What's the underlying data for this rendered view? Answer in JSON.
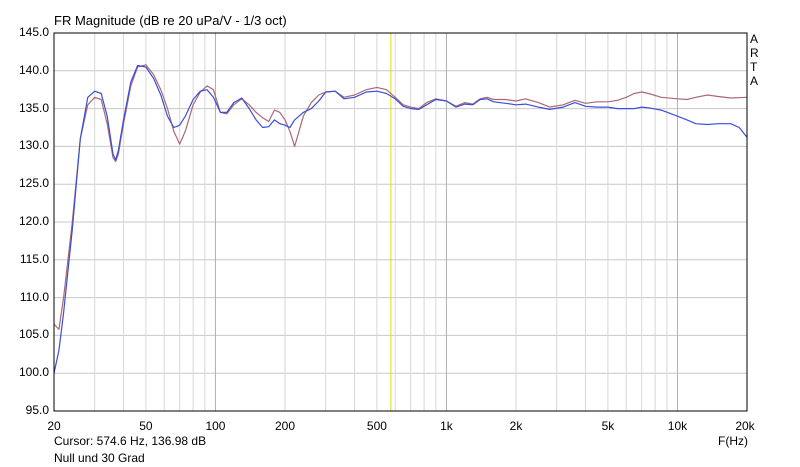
{
  "chart_data": {
    "type": "line",
    "title": "FR Magnitude (dB re 20 uPa/V - 1/3 oct)",
    "xlabel": "F(Hz)",
    "x_scale": "log",
    "xlim": [
      20,
      20000
    ],
    "ylim": [
      95,
      145
    ],
    "grid": true,
    "y_ticks": [
      "95.0",
      "100.0",
      "105.0",
      "110.0",
      "115.0",
      "120.0",
      "125.0",
      "130.0",
      "135.0",
      "140.0",
      "145.0"
    ],
    "x_ticks": [
      {
        "value": 20,
        "label": "20"
      },
      {
        "value": 50,
        "label": "50"
      },
      {
        "value": 100,
        "label": "100"
      },
      {
        "value": 200,
        "label": "200"
      },
      {
        "value": 500,
        "label": "500"
      },
      {
        "value": 1000,
        "label": "1k"
      },
      {
        "value": 2000,
        "label": "2k"
      },
      {
        "value": 5000,
        "label": "5k"
      },
      {
        "value": 10000,
        "label": "10k"
      },
      {
        "value": 20000,
        "label": "20k"
      }
    ],
    "cursor_x": 574.6,
    "series": [
      {
        "color": "#a86a72",
        "points": [
          [
            20,
            106.5
          ],
          [
            21,
            105.8
          ],
          [
            22,
            110
          ],
          [
            24,
            120
          ],
          [
            26,
            131
          ],
          [
            28,
            135.5
          ],
          [
            30,
            136.5
          ],
          [
            32,
            136.2
          ],
          [
            34,
            133
          ],
          [
            36,
            128.5
          ],
          [
            37,
            128
          ],
          [
            38,
            129
          ],
          [
            40,
            133
          ],
          [
            43,
            138
          ],
          [
            46,
            140.5
          ],
          [
            50,
            140.8
          ],
          [
            54,
            139.5
          ],
          [
            58,
            137.5
          ],
          [
            62,
            135
          ],
          [
            66,
            132
          ],
          [
            70,
            130.3
          ],
          [
            74,
            132
          ],
          [
            80,
            135.5
          ],
          [
            86,
            137.2
          ],
          [
            92,
            138
          ],
          [
            98,
            137.5
          ],
          [
            105,
            134.5
          ],
          [
            112,
            134.3
          ],
          [
            120,
            135.5
          ],
          [
            130,
            136.3
          ],
          [
            140,
            135.5
          ],
          [
            150,
            134.5
          ],
          [
            160,
            133.8
          ],
          [
            170,
            133.3
          ],
          [
            180,
            134.8
          ],
          [
            190,
            134.5
          ],
          [
            200,
            133.5
          ],
          [
            210,
            132
          ],
          [
            220,
            130
          ],
          [
            230,
            132
          ],
          [
            240,
            134
          ],
          [
            260,
            135.8
          ],
          [
            280,
            136.8
          ],
          [
            300,
            137.2
          ],
          [
            330,
            137.3
          ],
          [
            360,
            136.5
          ],
          [
            400,
            136.8
          ],
          [
            450,
            137.5
          ],
          [
            500,
            137.8
          ],
          [
            550,
            137.5
          ],
          [
            600,
            136.5
          ],
          [
            650,
            135.5
          ],
          [
            700,
            135.2
          ],
          [
            760,
            135
          ],
          [
            820,
            135.8
          ],
          [
            900,
            136.3
          ],
          [
            1000,
            136
          ],
          [
            1100,
            135.3
          ],
          [
            1200,
            135.8
          ],
          [
            1300,
            135.6
          ],
          [
            1400,
            136.3
          ],
          [
            1500,
            136.5
          ],
          [
            1600,
            136.2
          ],
          [
            1800,
            136.2
          ],
          [
            2000,
            136
          ],
          [
            2200,
            136.3
          ],
          [
            2500,
            135.8
          ],
          [
            2800,
            135.2
          ],
          [
            3200,
            135.5
          ],
          [
            3600,
            136.1
          ],
          [
            4000,
            135.7
          ],
          [
            4500,
            135.9
          ],
          [
            5000,
            135.9
          ],
          [
            5500,
            136.1
          ],
          [
            6000,
            136.5
          ],
          [
            6500,
            137
          ],
          [
            7000,
            137.2
          ],
          [
            7500,
            137
          ],
          [
            8500,
            136.5
          ],
          [
            10000,
            136.3
          ],
          [
            11000,
            136.2
          ],
          [
            12000,
            136.5
          ],
          [
            13500,
            136.8
          ],
          [
            15000,
            136.6
          ],
          [
            17000,
            136.4
          ],
          [
            20000,
            136.5
          ]
        ]
      },
      {
        "color": "#3a4fd8",
        "points": [
          [
            20,
            100
          ],
          [
            21,
            103
          ],
          [
            22,
            108
          ],
          [
            24,
            119
          ],
          [
            26,
            131
          ],
          [
            28,
            136.5
          ],
          [
            30,
            137.3
          ],
          [
            32,
            137
          ],
          [
            34,
            134
          ],
          [
            36,
            129
          ],
          [
            37,
            128.2
          ],
          [
            38,
            129.5
          ],
          [
            40,
            133.5
          ],
          [
            43,
            138.5
          ],
          [
            46,
            140.7
          ],
          [
            50,
            140.5
          ],
          [
            54,
            139
          ],
          [
            58,
            136.8
          ],
          [
            62,
            134
          ],
          [
            66,
            132.5
          ],
          [
            70,
            132.8
          ],
          [
            74,
            134
          ],
          [
            80,
            136.2
          ],
          [
            86,
            137.3
          ],
          [
            92,
            137.5
          ],
          [
            98,
            136.5
          ],
          [
            105,
            134.5
          ],
          [
            112,
            134.5
          ],
          [
            120,
            135.8
          ],
          [
            130,
            136.4
          ],
          [
            140,
            135
          ],
          [
            150,
            133.5
          ],
          [
            160,
            132.5
          ],
          [
            170,
            132.6
          ],
          [
            180,
            133.5
          ],
          [
            190,
            133
          ],
          [
            200,
            132.8
          ],
          [
            210,
            132.5
          ],
          [
            220,
            133.5
          ],
          [
            230,
            134
          ],
          [
            240,
            134.5
          ],
          [
            260,
            135
          ],
          [
            280,
            136
          ],
          [
            300,
            137.2
          ],
          [
            330,
            137.3
          ],
          [
            360,
            136.3
          ],
          [
            400,
            136.5
          ],
          [
            450,
            137.2
          ],
          [
            500,
            137.3
          ],
          [
            550,
            137
          ],
          [
            600,
            136.3
          ],
          [
            650,
            135.3
          ],
          [
            700,
            135
          ],
          [
            760,
            134.9
          ],
          [
            820,
            135.5
          ],
          [
            900,
            136.2
          ],
          [
            1000,
            136
          ],
          [
            1100,
            135.2
          ],
          [
            1200,
            135.6
          ],
          [
            1300,
            135.5
          ],
          [
            1400,
            136.2
          ],
          [
            1500,
            136.3
          ],
          [
            1600,
            135.9
          ],
          [
            1800,
            135.7
          ],
          [
            2000,
            135.5
          ],
          [
            2200,
            135.6
          ],
          [
            2500,
            135.2
          ],
          [
            2800,
            134.9
          ],
          [
            3200,
            135.2
          ],
          [
            3600,
            135.8
          ],
          [
            4000,
            135.3
          ],
          [
            4500,
            135.2
          ],
          [
            5000,
            135.2
          ],
          [
            5500,
            135
          ],
          [
            6000,
            135
          ],
          [
            6500,
            135
          ],
          [
            7000,
            135.2
          ],
          [
            7500,
            135.1
          ],
          [
            8500,
            134.8
          ],
          [
            10000,
            134
          ],
          [
            11000,
            133.5
          ],
          [
            12000,
            133
          ],
          [
            13500,
            132.9
          ],
          [
            15000,
            133
          ],
          [
            17000,
            133
          ],
          [
            18500,
            132.5
          ],
          [
            20000,
            131.2
          ]
        ]
      }
    ]
  },
  "brand": {
    "letters": [
      "A",
      "R",
      "T",
      "A"
    ]
  },
  "cursor_text": "Cursor: 574.6 Hz, 136.98 dB",
  "note": "Null und 30 Grad",
  "colors": {
    "grid": "#c8c8c8",
    "cursor": "#e0e000",
    "frame": "#000000"
  }
}
